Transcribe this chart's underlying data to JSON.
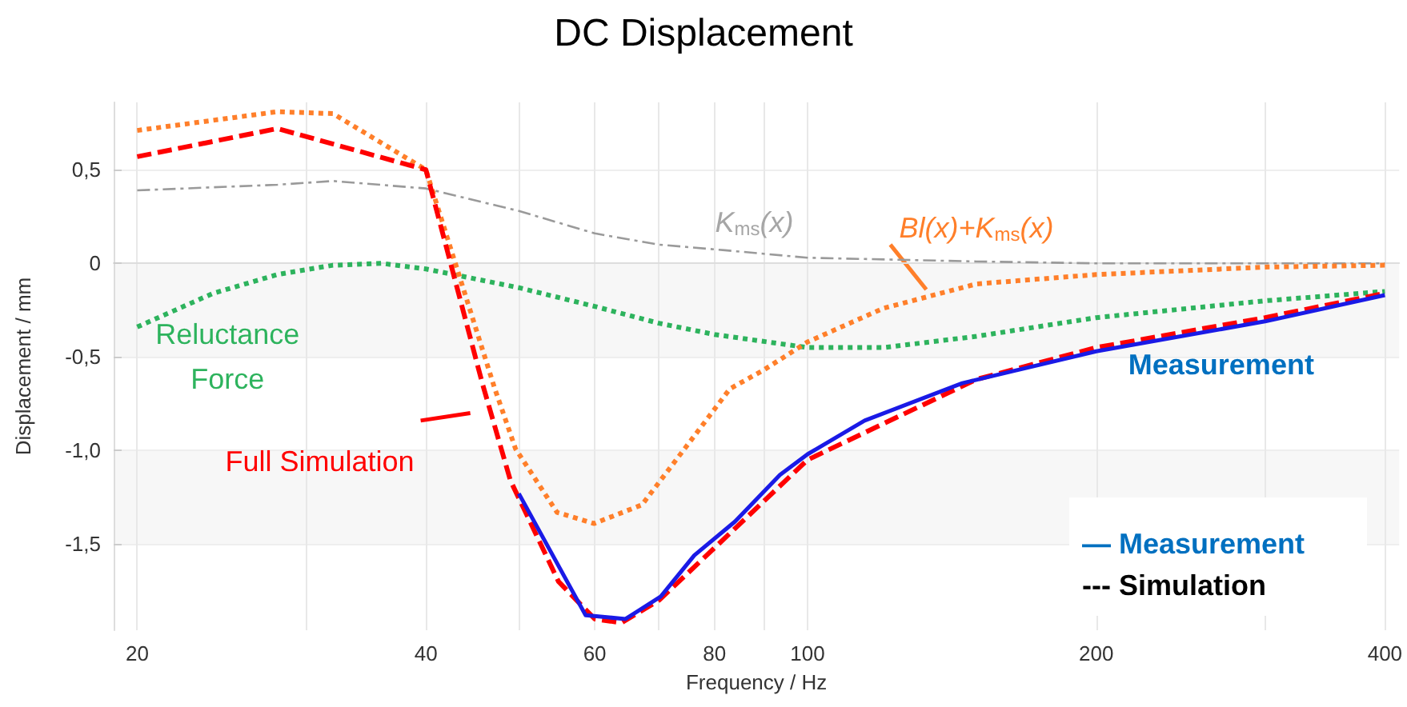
{
  "chart_data": {
    "type": "line",
    "title": "DC Displacement",
    "xlabel": "Frequency / Hz",
    "ylabel": "Displacement / mm",
    "log": "x",
    "xlim": [
      18.9,
      414
    ],
    "xticks": [
      20,
      {
        "value": 30,
        "label": null
      },
      40,
      {
        "value": 50,
        "label": null
      },
      60,
      {
        "value": 70,
        "label": null
      },
      80,
      {
        "value": 90,
        "label": null
      },
      100,
      200,
      {
        "value": 300,
        "label": null
      },
      400
    ],
    "ylim": [
      -1.96,
      0.86
    ],
    "yticks": [
      {
        "value": -1.5,
        "label": "-1,5"
      },
      {
        "value": -1,
        "label": "-1,0"
      },
      {
        "value": -0.5,
        "label": "-0,5"
      },
      {
        "value": 0,
        "label": "0"
      },
      {
        "value": 0.5,
        "label": "0,5"
      }
    ],
    "grid": true,
    "legend": false,
    "marker": "none",
    "series": [
      {
        "name": "Reluctance Force",
        "color": "#2db35d",
        "line_style": "dotted",
        "x": [
          20,
          24,
          28,
          32,
          36,
          40,
          50,
          60,
          70,
          80,
          100,
          120,
          150,
          200,
          300,
          400
        ],
        "values": [
          -0.34,
          -0.16,
          -0.06,
          -0.01,
          0.0,
          -0.03,
          -0.13,
          -0.23,
          -0.32,
          -0.38,
          -0.45,
          -0.45,
          -0.39,
          -0.29,
          -0.2,
          -0.15
        ]
      },
      {
        "name": "K$_{ms}$(x)",
        "color": "#9a9a9a",
        "line_style": "dashdot",
        "x": [
          20,
          28,
          32,
          40,
          50,
          60,
          70,
          82,
          100,
          150,
          200,
          300,
          400
        ],
        "values": [
          0.39,
          0.42,
          0.44,
          0.4,
          0.28,
          0.16,
          0.1,
          0.07,
          0.03,
          0.01,
          0.0,
          0.0,
          0.0
        ]
      },
      {
        "name": "Bl(x)+K$_{ms}$(x)",
        "color": "#ff7f2a",
        "line_style": "dotted",
        "x": [
          20,
          28,
          32,
          40,
          47.2,
          49.6,
          54.8,
          59.9,
          67.2,
          76,
          83,
          90,
          100,
          120,
          150,
          200,
          300,
          400
        ],
        "values": [
          0.71,
          0.81,
          0.8,
          0.5,
          -0.67,
          -0.99,
          -1.33,
          -1.39,
          -1.29,
          -0.93,
          -0.67,
          -0.57,
          -0.42,
          -0.24,
          -0.11,
          -0.06,
          -0.02,
          -0.01
        ]
      },
      {
        "name": "Full Simulation",
        "color": "#ff0000",
        "line_style": "dashed",
        "x": [
          20,
          28,
          40,
          45.8,
          49,
          55,
          60,
          64,
          70,
          80,
          100,
          150,
          200,
          300,
          400
        ],
        "values": [
          0.57,
          0.72,
          0.5,
          -0.64,
          -1.16,
          -1.7,
          -1.9,
          -1.92,
          -1.8,
          -1.52,
          -1.05,
          -0.62,
          -0.45,
          -0.29,
          -0.16
        ]
      },
      {
        "name": "Measurement",
        "color": "#1a1ae6",
        "line_style": "solid",
        "x": [
          50,
          58.7,
          64.6,
          70.3,
          76.2,
          84,
          93.6,
          100,
          114.7,
          145,
          200,
          300,
          400
        ],
        "values": [
          -1.23,
          -1.88,
          -1.9,
          -1.78,
          -1.56,
          -1.38,
          -1.13,
          -1.02,
          -0.84,
          -0.64,
          -0.47,
          -0.31,
          -0.17
        ]
      }
    ],
    "annotations": [
      "— Measurement",
      "--- Simulation"
    ]
  }
}
